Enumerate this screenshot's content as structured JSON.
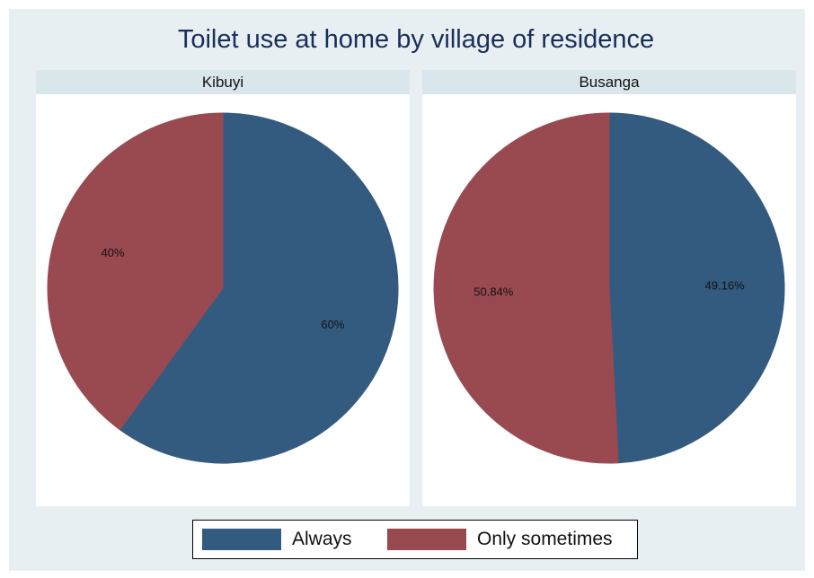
{
  "chart_data": {
    "type": "pie",
    "title": "Toilet use at home by village of residence",
    "legend": {
      "position": "bottom",
      "items": [
        {
          "label": "Always",
          "color": "#335a7f"
        },
        {
          "label": "Only sometimes",
          "color": "#994a51"
        }
      ]
    },
    "panels": [
      {
        "name": "Kibuyi",
        "slices": [
          {
            "series": "Always",
            "value": 60,
            "label": "60%"
          },
          {
            "series": "Only sometimes",
            "value": 40,
            "label": "40%"
          }
        ]
      },
      {
        "name": "Busanga",
        "slices": [
          {
            "series": "Always",
            "value": 49.16,
            "label": "49.16%"
          },
          {
            "series": "Only sometimes",
            "value": 50.84,
            "label": "50.84%"
          }
        ]
      }
    ]
  }
}
